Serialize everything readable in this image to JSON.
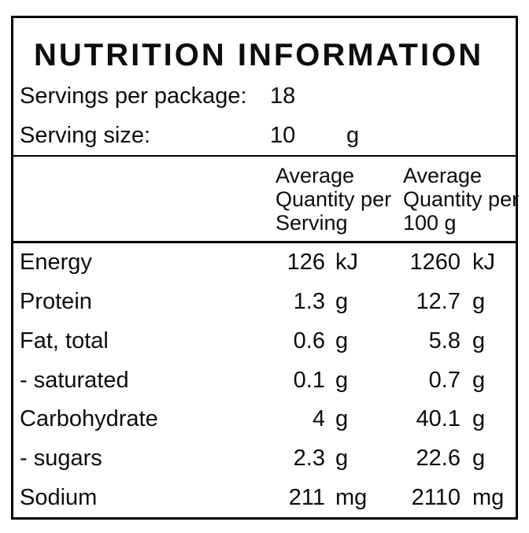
{
  "panel": {
    "title": "NUTRITION INFORMATION",
    "meta": {
      "servings_label": "Servings per package:",
      "servings_value": "18",
      "serving_size_label": "Serving size:",
      "serving_size_value": "10",
      "serving_size_unit": "g"
    },
    "columns": {
      "serving": {
        "line1": "Average",
        "line2": "Quantity per",
        "line3": "Serving"
      },
      "per_100g": {
        "line1": "Average",
        "line2": "Quantity per",
        "line3": "100 g"
      }
    },
    "rows": [
      {
        "label": "Energy",
        "serving": "126",
        "serving_unit": "kJ",
        "per100": "1260",
        "per100_unit": "kJ"
      },
      {
        "label": "Protein",
        "serving": "1.3",
        "serving_unit": "g",
        "per100": "12.7",
        "per100_unit": "g"
      },
      {
        "label": "Fat, total",
        "serving": "0.6",
        "serving_unit": "g",
        "per100": "5.8",
        "per100_unit": "g"
      },
      {
        "label": "- saturated",
        "serving": "0.1",
        "serving_unit": "g",
        "per100": "0.7",
        "per100_unit": "g"
      },
      {
        "label": "Carbohydrate",
        "serving": "4",
        "serving_unit": "g",
        "per100": "40.1",
        "per100_unit": "g"
      },
      {
        "label": "- sugars",
        "serving": "2.3",
        "serving_unit": "g",
        "per100": "22.6",
        "per100_unit": "g"
      },
      {
        "label": "Sodium",
        "serving": "211",
        "serving_unit": "mg",
        "per100": "2110",
        "per100_unit": "mg"
      }
    ],
    "colors": {
      "border": "#000000",
      "text": "#0d0d0d",
      "background": "#ffffff"
    }
  }
}
